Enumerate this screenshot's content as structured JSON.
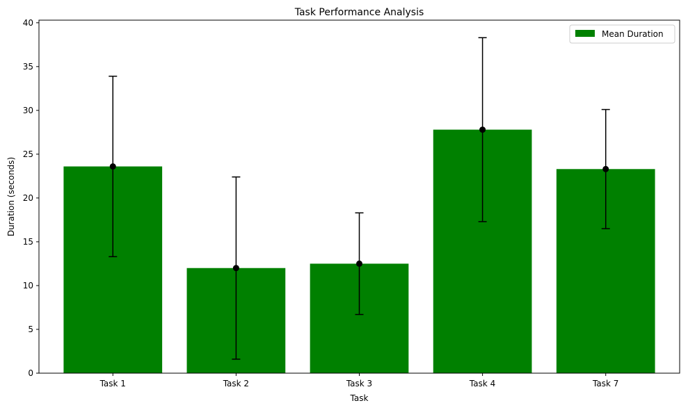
{
  "chart_data": {
    "type": "bar",
    "title": "Task Performance Analysis",
    "xlabel": "Task",
    "ylabel": "Duration (seconds)",
    "categories": [
      "Task 1",
      "Task 2",
      "Task 3",
      "Task 4",
      "Task 7"
    ],
    "series": [
      {
        "name": "Mean Duration",
        "values": [
          23.6,
          12.0,
          12.5,
          27.8,
          23.3
        ],
        "error": [
          10.3,
          10.4,
          5.8,
          10.5,
          6.8
        ],
        "color": "#008000"
      }
    ],
    "errorbar_color": "#000000",
    "ylim": [
      0,
      40.3
    ],
    "yticks": [
      0,
      5,
      10,
      15,
      20,
      25,
      30,
      35,
      40
    ],
    "grid": false,
    "legend_position": "top-right"
  }
}
